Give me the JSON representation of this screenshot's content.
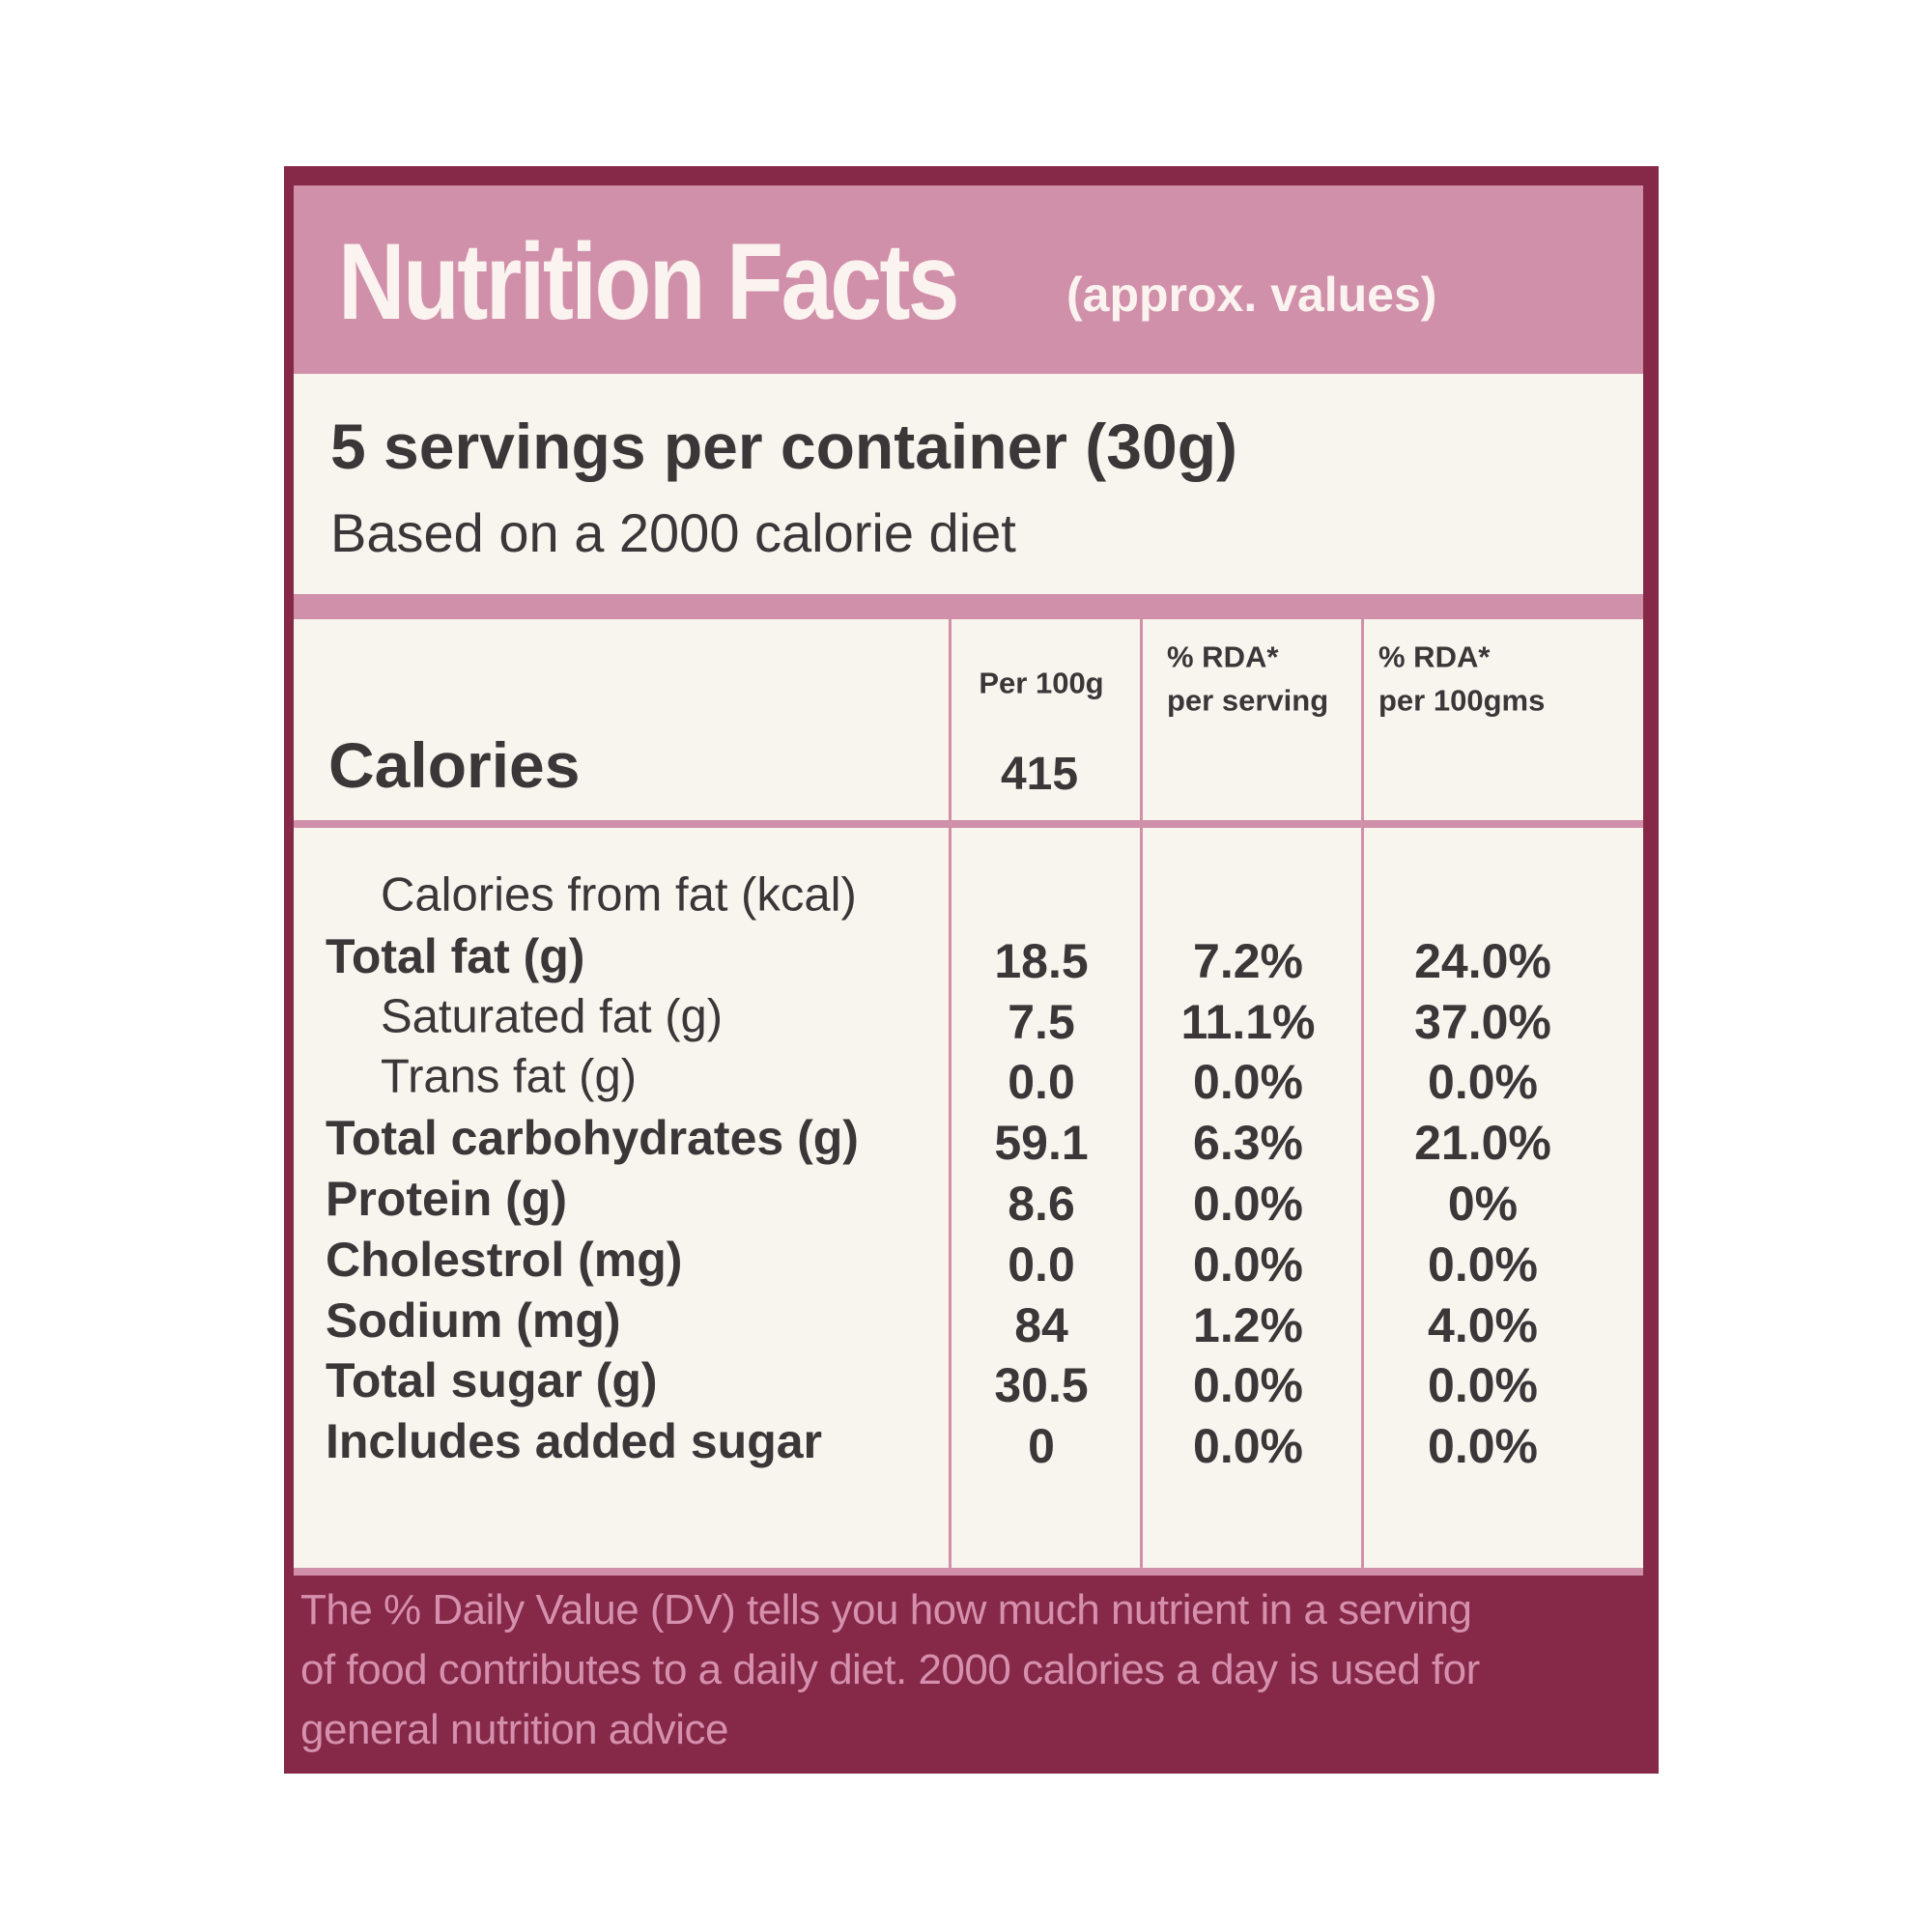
{
  "header": {
    "title": "Nutrition Facts",
    "subtitle": "(approx. values)"
  },
  "servings": {
    "line": "5 servings per container (30g)",
    "note": "Based on a 2000 calorie diet"
  },
  "table": {
    "columns": [
      "Per 100g",
      [
        "% RDA*",
        "per serving"
      ],
      [
        "% RDA*",
        "per 100gms"
      ]
    ],
    "calories": {
      "label": "Calories",
      "value": "415"
    },
    "rows": [
      {
        "label": "Calories from fat (kcal)",
        "indent": true,
        "bold": false,
        "values": []
      },
      {
        "label": "Total fat (g)",
        "indent": false,
        "bold": true,
        "values": [
          "18.5",
          "7.2%",
          "24.0%"
        ]
      },
      {
        "label": "Saturated fat (g)",
        "indent": true,
        "bold": false,
        "values": [
          "7.5",
          "11.1%",
          "37.0%"
        ]
      },
      {
        "label": "Trans fat (g)",
        "indent": true,
        "bold": false,
        "values": [
          "0.0",
          "0.0%",
          "0.0%"
        ]
      },
      {
        "label": "Total carbohydrates (g)",
        "indent": false,
        "bold": true,
        "values": [
          "59.1",
          "6.3%",
          "21.0%"
        ]
      },
      {
        "label": "Protein (g)",
        "indent": false,
        "bold": true,
        "values": [
          "8.6",
          "0.0%",
          "0%"
        ]
      },
      {
        "label": "Cholestrol (mg)",
        "indent": false,
        "bold": true,
        "values": [
          "0.0",
          "0.0%",
          "0.0%"
        ]
      },
      {
        "label": "Sodium (mg)",
        "indent": false,
        "bold": true,
        "values": [
          "84",
          "1.2%",
          "4.0%"
        ]
      },
      {
        "label": "Total sugar (g)",
        "indent": false,
        "bold": true,
        "values": [
          "30.5",
          "0.0%",
          "0.0%"
        ]
      },
      {
        "label": "Includes added sugar",
        "indent": false,
        "bold": true,
        "values": [
          "0",
          "0.0%",
          "0.0%"
        ]
      }
    ]
  },
  "footer": [
    "The % Daily Value (DV) tells you how much nutrient in a serving",
    "of food contributes to a daily diet. 2000 calories a day is used for",
    "general nutrition advice"
  ]
}
